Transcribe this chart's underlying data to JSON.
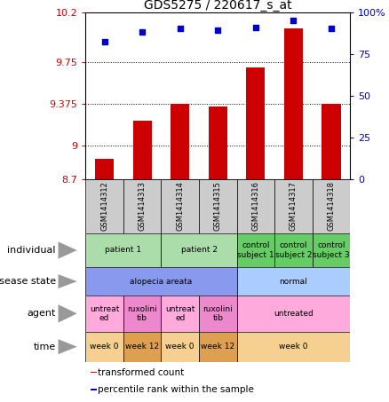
{
  "title": "GDS5275 / 220617_s_at",
  "samples": [
    "GSM1414312",
    "GSM1414313",
    "GSM1414314",
    "GSM1414315",
    "GSM1414316",
    "GSM1414317",
    "GSM1414318"
  ],
  "bar_values": [
    8.88,
    9.22,
    9.375,
    9.35,
    9.7,
    10.05,
    9.375
  ],
  "dot_values": [
    82,
    88,
    90,
    89,
    91,
    95,
    90
  ],
  "ylim_left": [
    8.7,
    10.2
  ],
  "ylim_right": [
    0,
    100
  ],
  "yticks_left": [
    8.7,
    9.0,
    9.375,
    9.75,
    10.2
  ],
  "ytick_labels_left": [
    "8.7",
    "9",
    "9.375",
    "9.75",
    "10.2"
  ],
  "yticks_right": [
    0,
    25,
    50,
    75,
    100
  ],
  "ytick_labels_right": [
    "0",
    "25",
    "50",
    "75",
    "100%"
  ],
  "hlines": [
    9.0,
    9.375,
    9.75
  ],
  "bar_color": "#cc0000",
  "dot_color": "#0000cc",
  "bar_bottom": 8.7,
  "sample_box_color": "#cccccc",
  "rows": {
    "individual": {
      "label": "individual",
      "cells": [
        {
          "text": "patient 1",
          "span": [
            0,
            2
          ],
          "color": "#aaddaa"
        },
        {
          "text": "patient 2",
          "span": [
            2,
            4
          ],
          "color": "#aaddaa"
        },
        {
          "text": "control\nsubject 1",
          "span": [
            4,
            5
          ],
          "color": "#66cc66"
        },
        {
          "text": "control\nsubject 2",
          "span": [
            5,
            6
          ],
          "color": "#66cc66"
        },
        {
          "text": "control\nsubject 3",
          "span": [
            6,
            7
          ],
          "color": "#66cc66"
        }
      ]
    },
    "disease_state": {
      "label": "disease state",
      "cells": [
        {
          "text": "alopecia areata",
          "span": [
            0,
            4
          ],
          "color": "#8899ee"
        },
        {
          "text": "normal",
          "span": [
            4,
            7
          ],
          "color": "#aaccff"
        }
      ]
    },
    "agent": {
      "label": "agent",
      "cells": [
        {
          "text": "untreat\ned",
          "span": [
            0,
            1
          ],
          "color": "#ffaadd"
        },
        {
          "text": "ruxolini\ntib",
          "span": [
            1,
            2
          ],
          "color": "#ee88cc"
        },
        {
          "text": "untreat\ned",
          "span": [
            2,
            3
          ],
          "color": "#ffaadd"
        },
        {
          "text": "ruxolini\ntib",
          "span": [
            3,
            4
          ],
          "color": "#ee88cc"
        },
        {
          "text": "untreated",
          "span": [
            4,
            7
          ],
          "color": "#ffaadd"
        }
      ]
    },
    "time": {
      "label": "time",
      "cells": [
        {
          "text": "week 0",
          "span": [
            0,
            1
          ],
          "color": "#f5d090"
        },
        {
          "text": "week 12",
          "span": [
            1,
            2
          ],
          "color": "#dda050"
        },
        {
          "text": "week 0",
          "span": [
            2,
            3
          ],
          "color": "#f5d090"
        },
        {
          "text": "week 12",
          "span": [
            3,
            4
          ],
          "color": "#dda050"
        },
        {
          "text": "week 0",
          "span": [
            4,
            7
          ],
          "color": "#f5d090"
        }
      ]
    }
  },
  "legend_items": [
    {
      "color": "#cc0000",
      "label": "transformed count"
    },
    {
      "color": "#0000cc",
      "label": "percentile rank within the sample"
    }
  ]
}
